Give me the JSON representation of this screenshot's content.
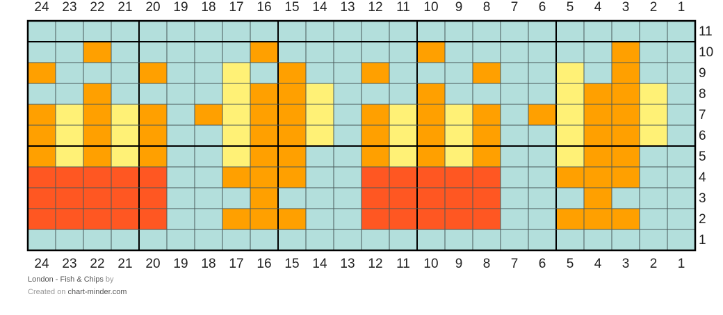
{
  "chart": {
    "columns": [
      24,
      23,
      22,
      21,
      20,
      19,
      18,
      17,
      16,
      15,
      14,
      13,
      12,
      11,
      10,
      9,
      8,
      7,
      6,
      5,
      4,
      3,
      2,
      1
    ],
    "palette": {
      "B": "#b3dfdc",
      "O": "#ffa000",
      "Y": "#fff176",
      "R": "#ff5722"
    },
    "grid_color": "#4a5a5a",
    "bold_every": 5,
    "rows": [
      {
        "label": 11,
        "cells": "BBBBBBBBBBBBBBBBBBBBBBBB"
      },
      {
        "label": 10,
        "cells": "BBOBBBBBOBBBBBOBBBBBBOBB"
      },
      {
        "label": 9,
        "cells": "OBBBOBBYBOBBOBBBOBBYBOBB"
      },
      {
        "label": 8,
        "cells": "BBOBBBBYOOYBBBOBBBBYOOYB"
      },
      {
        "label": 7,
        "cells": "OYOYOBOYOOYBOYOYOBOYOOYB"
      },
      {
        "label": 6,
        "cells": "OYOYOBBYOOYBOYOYOBBYOOYB"
      },
      {
        "label": 5,
        "cells": "OYOYOBBYOOBBOYOYOBBYOOBB"
      },
      {
        "label": 4,
        "cells": "RRRRRBBOOOBBRRRRRBBOOOBB"
      },
      {
        "label": 3,
        "cells": "RRRRRBBBOBBBRRRRRBBBOBBB"
      },
      {
        "label": 2,
        "cells": "RRRRRBBOOOBBRRRRRBBOOOBB"
      },
      {
        "label": 1,
        "cells": "BBBBBBBBBBBBBBBBBBBBBBBB"
      }
    ]
  },
  "footer": {
    "title": "London - Fish & Chips",
    "by": "by",
    "created": "Created on",
    "site": "chart-minder.com"
  }
}
